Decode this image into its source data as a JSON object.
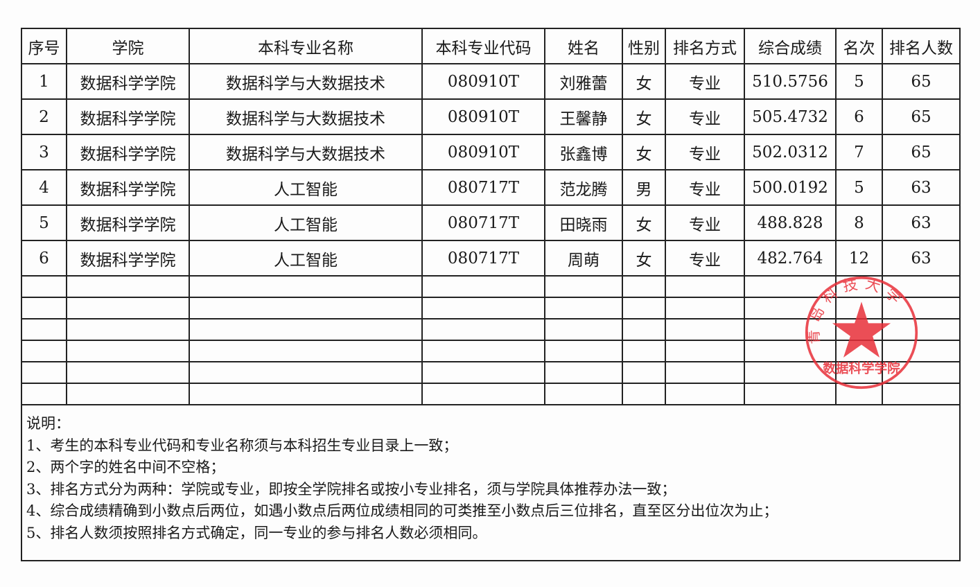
{
  "table": {
    "headers": [
      "序号",
      "学院",
      "本科专业名称",
      "本科专业代码",
      "姓名",
      "性别",
      "排名方式",
      "综合成绩",
      "名次",
      "排名人数"
    ],
    "rows": [
      [
        "1",
        "数据科学学院",
        "数据科学与大数据技术",
        "080910T",
        "刘雅蕾",
        "女",
        "专业",
        "510.5756",
        "5",
        "65"
      ],
      [
        "2",
        "数据科学学院",
        "数据科学与大数据技术",
        "080910T",
        "王馨静",
        "女",
        "专业",
        "505.4732",
        "6",
        "65"
      ],
      [
        "3",
        "数据科学学院",
        "数据科学与大数据技术",
        "080910T",
        "张鑫博",
        "女",
        "专业",
        "502.0312",
        "7",
        "65"
      ],
      [
        "4",
        "数据科学学院",
        "人工智能",
        "080717T",
        "范龙腾",
        "男",
        "专业",
        "500.0192",
        "5",
        "63"
      ],
      [
        "5",
        "数据科学学院",
        "人工智能",
        "080717T",
        "田晓雨",
        "女",
        "专业",
        "488.828",
        "8",
        "63"
      ],
      [
        "6",
        "数据科学学院",
        "人工智能",
        "080717T",
        "周萌",
        "女",
        "专业",
        "482.764",
        "12",
        "63"
      ]
    ]
  },
  "notes": {
    "title": "说明：",
    "items": [
      "1、考生的本科专业代码和专业名称须与本科招生专业目录上一致；",
      "2、两个字的姓名中间不空格；",
      "3、排名方式分为两种：学院或专业，即按全学院排名或按小专业排名，须与学院具体推荐办法一致；",
      "4、综合成绩精确到小数点后两位，如遇小数点后两位成绩相同的可类推至小数点后三位排名，直至区分出位次为止；",
      "5、排名人数须按照排名方式确定，同一专业的参与排名人数必须相同。"
    ]
  },
  "stamp": {
    "outer_text": "青岛科技大学",
    "inner_text": "数据科学学院",
    "color": "#e8303a"
  }
}
